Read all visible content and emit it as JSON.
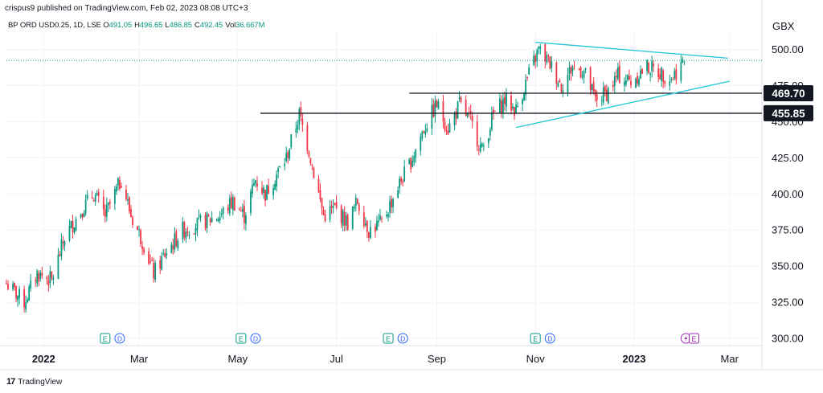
{
  "header": {
    "publish_text": "crispus9 published on TradingView.com, Feb 02, 2023 08:08 UTC+3",
    "symbol": "BP ORD USD0.25, 1D, LSE",
    "ohlc": [
      {
        "key": "O",
        "value": "491.05"
      },
      {
        "key": "H",
        "value": "496.65"
      },
      {
        "key": "L",
        "value": "486.85"
      },
      {
        "key": "C",
        "value": "492.45"
      },
      {
        "key": "Vol",
        "value": "36.667M"
      }
    ],
    "currency": "GBX"
  },
  "footer": {
    "brand": "TradingView",
    "logo_text": "17"
  },
  "colors": {
    "up": "#089981",
    "down": "#f23645",
    "trendline": "#22c8d8",
    "level_line": "#131722",
    "axis_text": "#131722",
    "grid": "#f0f3fa",
    "last_price_line": "#089981"
  },
  "chart_data": {
    "type": "candlestick",
    "y_axis": {
      "unit": "GBX",
      "range": [
        295,
        512
      ],
      "ticks": [
        "300.00",
        "325.00",
        "350.00",
        "375.00",
        "400.00",
        "425.00",
        "450.00",
        "475.00",
        "500.00"
      ]
    },
    "x_axis": {
      "ticks": [
        {
          "label": "2022",
          "date": "2022-01-01",
          "bold": true
        },
        {
          "label": "Mar",
          "date": "2022-03-01"
        },
        {
          "label": "May",
          "date": "2022-05-01"
        },
        {
          "label": "Jul",
          "date": "2022-07-01"
        },
        {
          "label": "Sep",
          "date": "2022-09-01"
        },
        {
          "label": "Nov",
          "date": "2022-11-01"
        },
        {
          "label": "2023",
          "date": "2023-01-01",
          "bold": true
        },
        {
          "label": "Mar",
          "date": "2023-03-01"
        }
      ]
    },
    "horizontal_levels": [
      {
        "value": 469.7,
        "label": "469.70",
        "from": "2022-08-15"
      },
      {
        "value": 455.85,
        "label": "455.85",
        "from": "2022-05-15"
      }
    ],
    "trendlines": [
      {
        "from": {
          "date": "2022-11-01",
          "value": 505
        },
        "to": {
          "date": "2023-02-28",
          "value": 494
        }
      },
      {
        "from": {
          "date": "2022-10-20",
          "value": 446
        },
        "to": {
          "date": "2023-03-01",
          "value": 478
        }
      }
    ],
    "last_price": 492.45,
    "events": [
      {
        "date": "2022-02-08",
        "type": "E"
      },
      {
        "date": "2022-02-17",
        "type": "D"
      },
      {
        "date": "2022-05-03",
        "type": "E"
      },
      {
        "date": "2022-05-12",
        "type": "D"
      },
      {
        "date": "2022-08-02",
        "type": "E"
      },
      {
        "date": "2022-08-11",
        "type": "D"
      },
      {
        "date": "2022-11-01",
        "type": "E"
      },
      {
        "date": "2022-11-10",
        "type": "D"
      },
      {
        "date": "2023-02-02",
        "type": "split"
      },
      {
        "date": "2023-02-07",
        "type": "E"
      }
    ],
    "series": [
      {
        "date": "2021-12-09",
        "value": 338
      },
      {
        "date": "2021-12-20",
        "value": 325
      },
      {
        "date": "2021-12-28",
        "value": 345
      },
      {
        "date": "2022-01-06",
        "value": 340
      },
      {
        "date": "2022-01-14",
        "value": 370
      },
      {
        "date": "2022-01-25",
        "value": 390
      },
      {
        "date": "2022-02-01",
        "value": 400
      },
      {
        "date": "2022-02-08",
        "value": 385
      },
      {
        "date": "2022-02-18",
        "value": 410
      },
      {
        "date": "2022-02-24",
        "value": 385
      },
      {
        "date": "2022-03-04",
        "value": 365
      },
      {
        "date": "2022-03-10",
        "value": 345
      },
      {
        "date": "2022-03-18",
        "value": 360
      },
      {
        "date": "2022-03-28",
        "value": 375
      },
      {
        "date": "2022-04-08",
        "value": 380
      },
      {
        "date": "2022-04-20",
        "value": 385
      },
      {
        "date": "2022-04-28",
        "value": 395
      },
      {
        "date": "2022-05-05",
        "value": 385
      },
      {
        "date": "2022-05-12",
        "value": 410
      },
      {
        "date": "2022-05-18",
        "value": 400
      },
      {
        "date": "2022-05-31",
        "value": 425
      },
      {
        "date": "2022-06-08",
        "value": 455
      },
      {
        "date": "2022-06-14",
        "value": 430
      },
      {
        "date": "2022-06-23",
        "value": 385
      },
      {
        "date": "2022-06-30",
        "value": 390
      },
      {
        "date": "2022-07-08",
        "value": 380
      },
      {
        "date": "2022-07-14",
        "value": 395
      },
      {
        "date": "2022-07-21",
        "value": 375
      },
      {
        "date": "2022-07-29",
        "value": 380
      },
      {
        "date": "2022-08-08",
        "value": 405
      },
      {
        "date": "2022-08-15",
        "value": 420
      },
      {
        "date": "2022-08-24",
        "value": 445
      },
      {
        "date": "2022-09-01",
        "value": 462
      },
      {
        "date": "2022-09-08",
        "value": 445
      },
      {
        "date": "2022-09-15",
        "value": 462
      },
      {
        "date": "2022-09-22",
        "value": 450
      },
      {
        "date": "2022-09-29",
        "value": 430
      },
      {
        "date": "2022-10-06",
        "value": 455
      },
      {
        "date": "2022-10-13",
        "value": 465
      },
      {
        "date": "2022-10-20",
        "value": 458
      },
      {
        "date": "2022-10-27",
        "value": 480
      },
      {
        "date": "2022-11-03",
        "value": 500
      },
      {
        "date": "2022-11-10",
        "value": 490
      },
      {
        "date": "2022-11-17",
        "value": 475
      },
      {
        "date": "2022-11-24",
        "value": 488
      },
      {
        "date": "2022-12-01",
        "value": 485
      },
      {
        "date": "2022-12-08",
        "value": 465
      },
      {
        "date": "2022-12-15",
        "value": 470
      },
      {
        "date": "2022-12-22",
        "value": 482
      },
      {
        "date": "2022-12-30",
        "value": 478
      },
      {
        "date": "2023-01-09",
        "value": 488
      },
      {
        "date": "2023-01-17",
        "value": 484
      },
      {
        "date": "2023-01-24",
        "value": 480
      },
      {
        "date": "2023-02-01",
        "value": 492.45
      }
    ]
  }
}
